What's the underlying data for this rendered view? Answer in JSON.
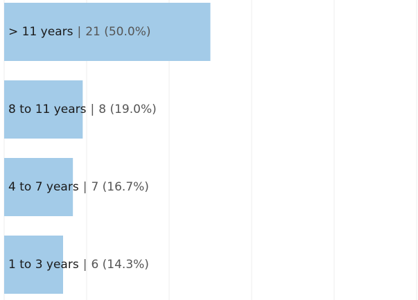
{
  "chart_data": {
    "type": "hbar",
    "categories": [
      "> 11 years",
      "8 to 11 years",
      "4 to 7 years",
      "1 to 3 years"
    ],
    "values": [
      21,
      8,
      7,
      6
    ],
    "value_labels": [
      "21 (50.0%)",
      "8 (19.0%)",
      "7 (16.7%)",
      "6 (14.3%)"
    ],
    "label_separator": "|",
    "color": "#a3cbe8",
    "xlim": [
      0,
      42
    ],
    "xticks": [
      0,
      8.4,
      16.8,
      25.2,
      33.6,
      42
    ],
    "grid": true
  }
}
